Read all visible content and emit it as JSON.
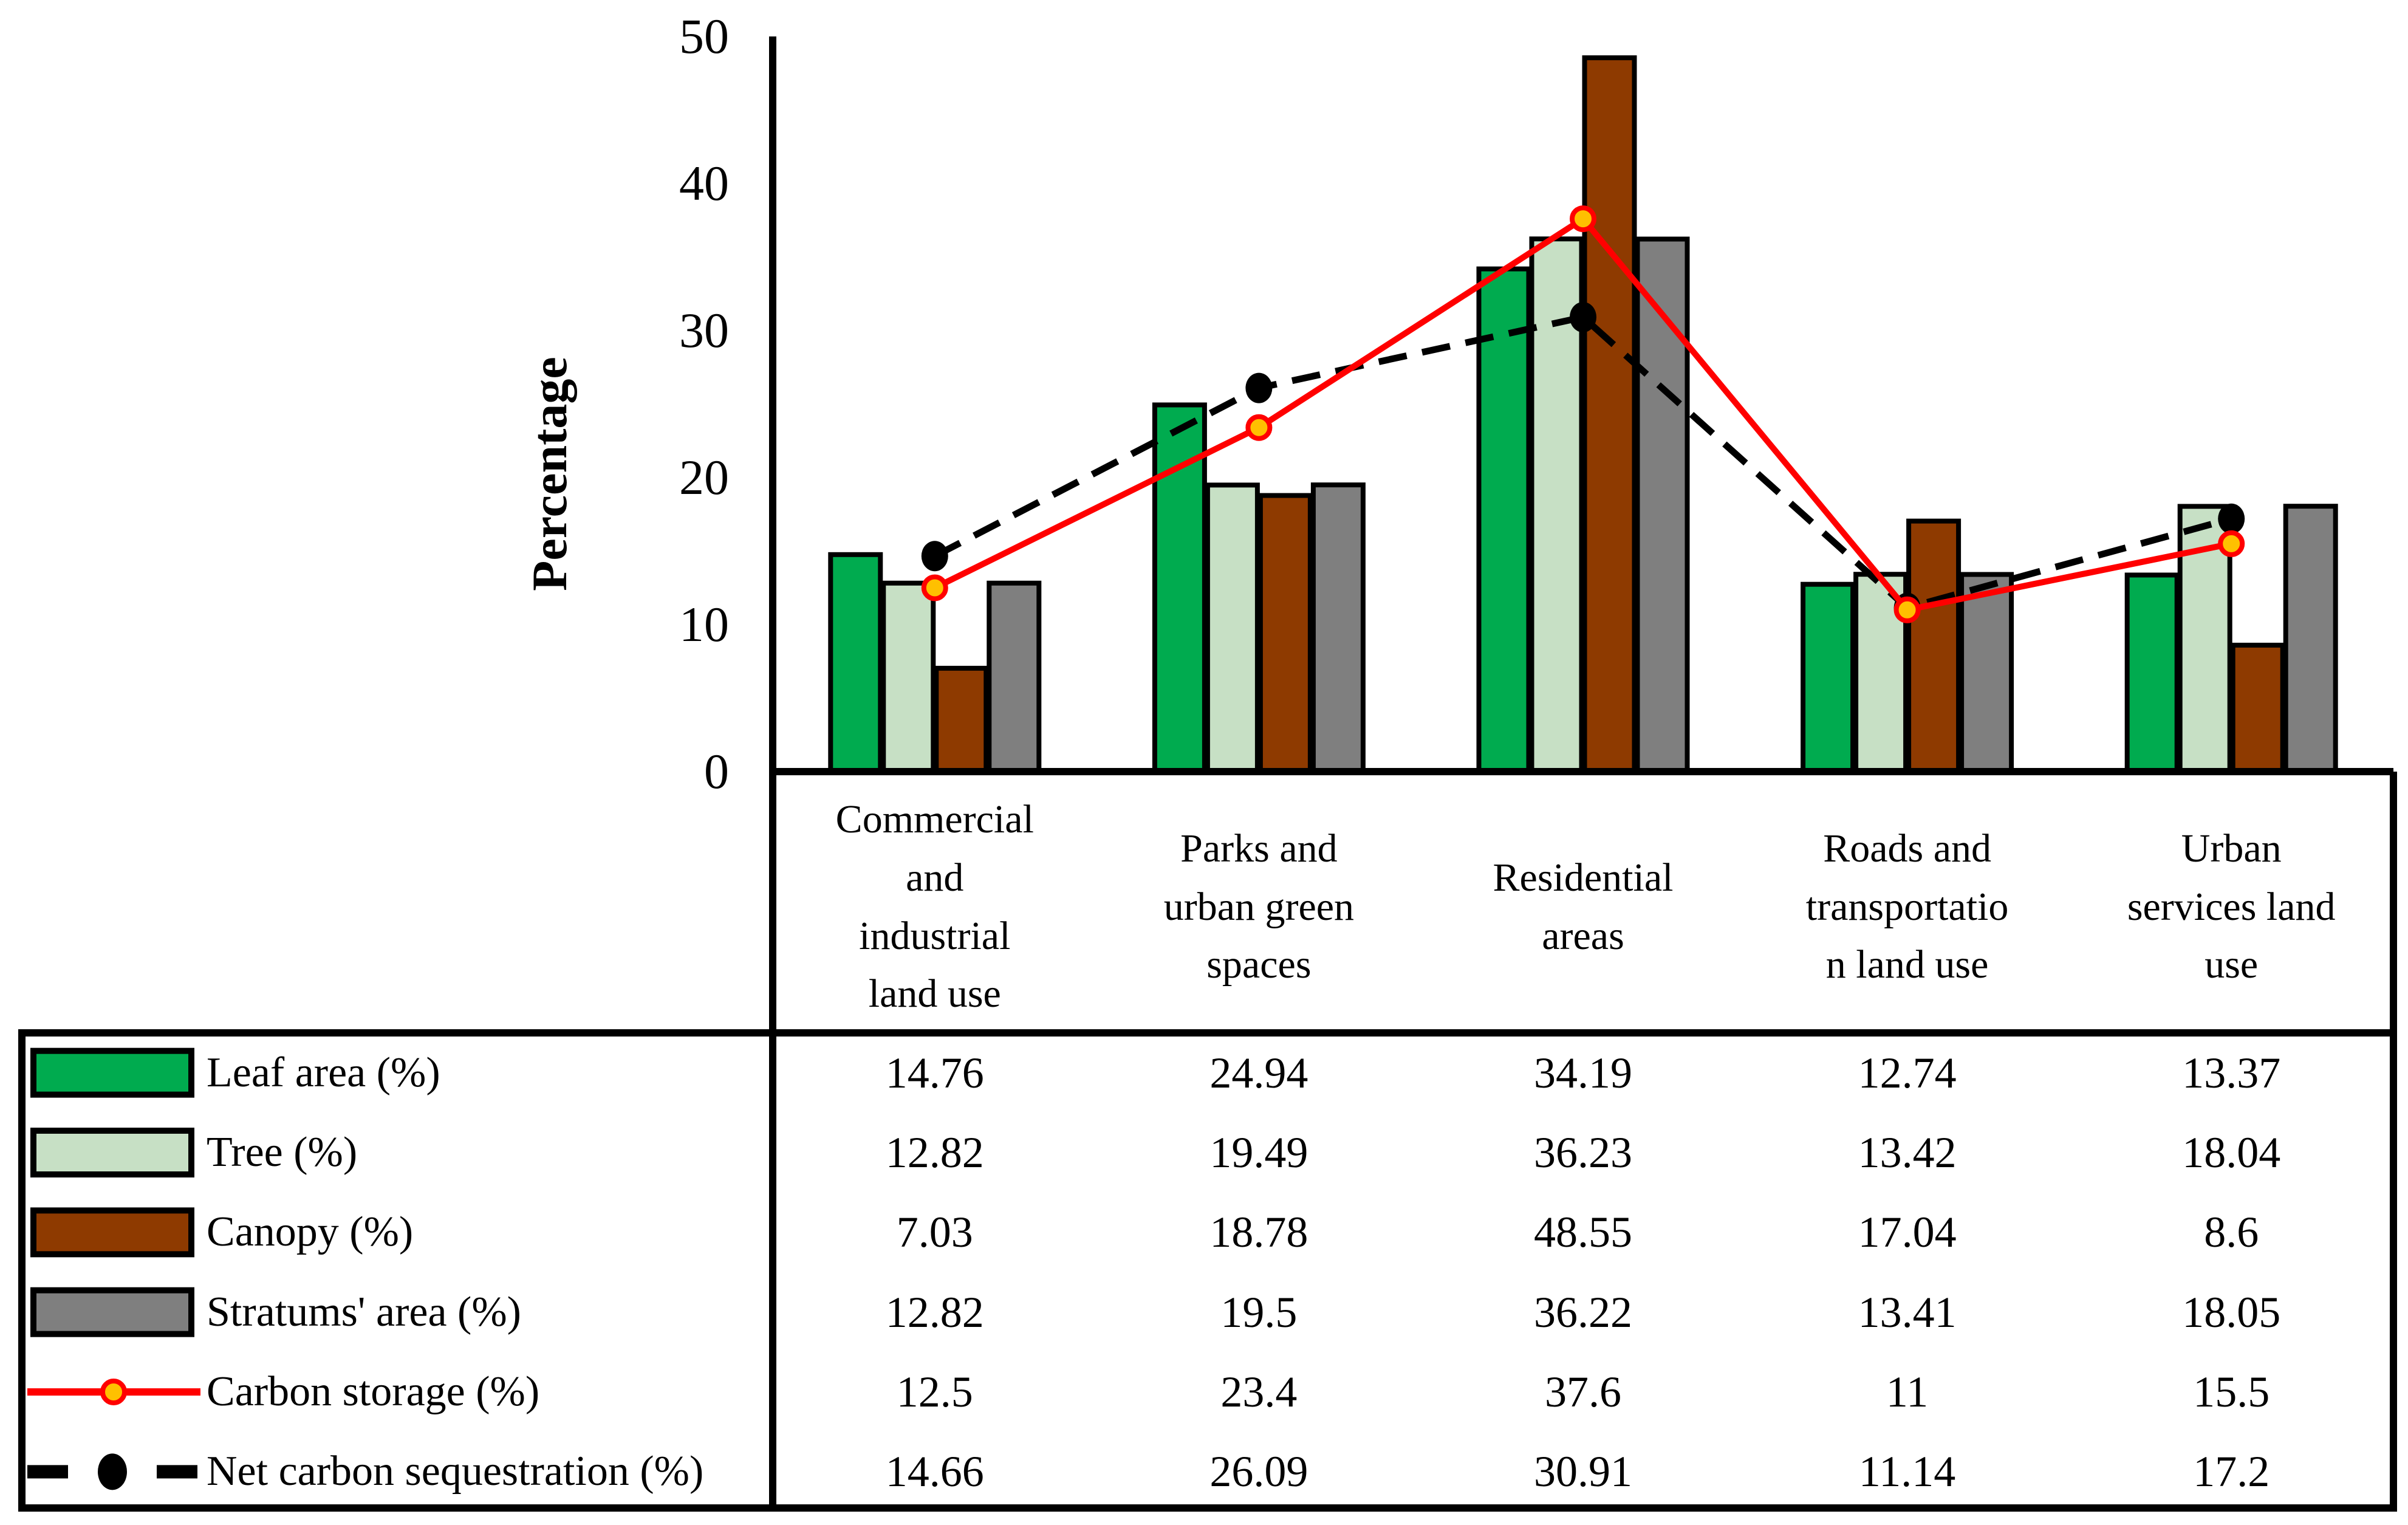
{
  "colors": {
    "leaf_green": "#00AB4F",
    "tree_light_green": "#C7E0C5",
    "canopy_brown": "#8E3A00",
    "stratums_gray": "#7F7F7F",
    "carbon_red": "#FF0000",
    "marker_yellow": "#FFC000",
    "net_black": "#000000",
    "axis_black": "#000000",
    "background": "#FFFFFF"
  },
  "chart_data": {
    "type": "bar+line",
    "title": "",
    "xlabel": "",
    "ylabel": "Percentage",
    "ylim": [
      0,
      50
    ],
    "yticks": [
      0,
      10,
      20,
      30,
      40,
      50
    ],
    "grid": false,
    "legend_position": "table-left",
    "categories": [
      "Commercial and industrial land use",
      "Parks and urban green spaces",
      "Residential areas",
      "Roads and transportation land use",
      "Urban services land use"
    ],
    "category_display": [
      "Commercial\nand\nindustrial\nland use",
      "Parks and\nurban green\nspaces",
      "Residential\nareas",
      "Roads and\ntransportatio\nn land use",
      "Urban\nservices land\nuse"
    ],
    "series": [
      {
        "name": "Leaf area (%)",
        "kind": "bar",
        "color": "#00AB4F",
        "values": [
          14.76,
          24.94,
          34.19,
          12.74,
          13.37
        ]
      },
      {
        "name": "Tree (%)",
        "kind": "bar",
        "color": "#C7E0C5",
        "values": [
          12.82,
          19.49,
          36.23,
          13.42,
          18.04
        ]
      },
      {
        "name": "Canopy (%)",
        "kind": "bar",
        "color": "#8E3A00",
        "values": [
          7.03,
          18.78,
          48.55,
          17.04,
          8.6
        ]
      },
      {
        "name": "Stratums' area (%)",
        "kind": "bar",
        "color": "#7F7F7F",
        "values": [
          12.82,
          19.5,
          36.22,
          13.41,
          18.05
        ]
      },
      {
        "name": "Carbon storage (%)",
        "kind": "line",
        "color": "#FF0000",
        "marker": "circle-yellow-red-ring",
        "values": [
          12.5,
          23.4,
          37.6,
          11,
          15.5
        ]
      },
      {
        "name": "Net carbon sequestration (%)",
        "kind": "line-dashed",
        "color": "#000000",
        "marker": "filled-black-dot",
        "values": [
          14.66,
          26.09,
          30.91,
          11.14,
          17.2
        ]
      }
    ]
  }
}
